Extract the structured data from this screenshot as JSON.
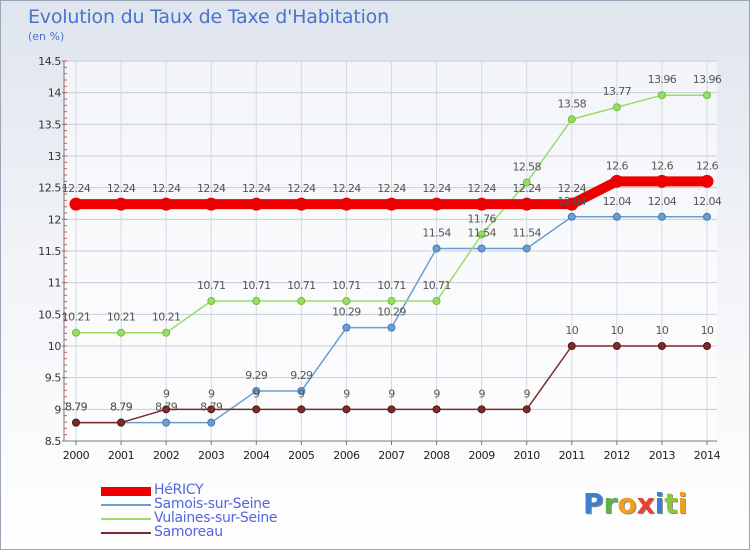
{
  "header": {
    "title": "Evolution du Taux de Taxe d'Habitation",
    "unit": "(en %)"
  },
  "logo": {
    "letters": [
      {
        "char": "P",
        "color": "#3a7fd0"
      },
      {
        "char": "r",
        "color": "#5fb04b"
      },
      {
        "char": "o",
        "color": "#f0a020"
      },
      {
        "char": "x",
        "color": "#e84030"
      },
      {
        "char": "i",
        "color": "#3a7fd0"
      },
      {
        "char": "t",
        "color": "#8cc63f"
      },
      {
        "char": "i",
        "color": "#f0a020"
      }
    ]
  },
  "chart_data": {
    "type": "line",
    "title": "Evolution du Taux de Taxe d'Habitation",
    "ylabel": "(en %)",
    "xlabel": "",
    "x": [
      2000,
      2001,
      2002,
      2003,
      2004,
      2005,
      2006,
      2007,
      2008,
      2009,
      2010,
      2011,
      2012,
      2013,
      2014
    ],
    "ylim": [
      8.5,
      14.5
    ],
    "yticks": [
      8.5,
      9,
      9.5,
      10,
      10.5,
      11,
      11.5,
      12,
      12.5,
      13,
      13.5,
      14,
      14.5
    ],
    "ytick_labels": [
      "8.5",
      "9",
      "9.5",
      "10",
      "10.5",
      "11",
      "11.5",
      "12",
      "12.5",
      "13",
      "13.5",
      "14",
      "14.5"
    ],
    "grid": true,
    "legend_position": "bottom-left",
    "series": [
      {
        "name": "HéRICY",
        "color": "#ee0000",
        "bold": true,
        "values": [
          12.24,
          12.24,
          12.24,
          12.24,
          12.24,
          12.24,
          12.24,
          12.24,
          12.24,
          12.24,
          12.24,
          12.24,
          12.6,
          12.6,
          12.6
        ],
        "labels": [
          "12.24",
          "12.24",
          "12.24",
          "12.24",
          "12.24",
          "12.24",
          "12.24",
          "12.24",
          "12.24",
          "12.24",
          "12.24",
          "12.24",
          "12.6",
          "12.6",
          "12.6"
        ]
      },
      {
        "name": "Samois-sur-Seine",
        "color": "#6a9ed0",
        "dot_color": "#3e7bb8",
        "values": [
          8.79,
          8.79,
          8.79,
          8.79,
          9.29,
          9.29,
          10.29,
          10.29,
          11.54,
          11.54,
          11.54,
          12.04,
          12.04,
          12.04,
          12.04
        ],
        "labels": [
          "8.79",
          "8.79",
          "8.79",
          "8.79",
          "9.29",
          "9.29",
          "10.29",
          "10.29",
          "11.54",
          "11.54",
          "11.54",
          "12.04",
          "12.04",
          "12.04",
          "12.04"
        ]
      },
      {
        "name": "Vulaines-sur-Seine",
        "color": "#99dd66",
        "dot_color": "#6cbf3a",
        "values": [
          10.21,
          10.21,
          10.21,
          10.71,
          10.71,
          10.71,
          10.71,
          10.71,
          10.71,
          11.76,
          12.58,
          13.58,
          13.77,
          13.96,
          13.96
        ],
        "labels": [
          "10.21",
          "10.21",
          "10.21",
          "10.71",
          "10.71",
          "10.71",
          "10.71",
          "10.71",
          "10.71",
          "11.76",
          "12.58",
          "13.58",
          "13.77",
          "13.96",
          "13.96"
        ]
      },
      {
        "name": "Samoreau",
        "color": "#7a2b2b",
        "dot_color": "#5a1515",
        "values": [
          8.79,
          8.79,
          9,
          9,
          9,
          9,
          9,
          9,
          9,
          9,
          9,
          10,
          10,
          10,
          10
        ],
        "labels": [
          "8.79",
          "8.79",
          "9",
          "9",
          "9",
          "9",
          "9",
          "9",
          "9",
          "9",
          "9",
          "10",
          "10",
          "10",
          "10"
        ]
      }
    ]
  }
}
